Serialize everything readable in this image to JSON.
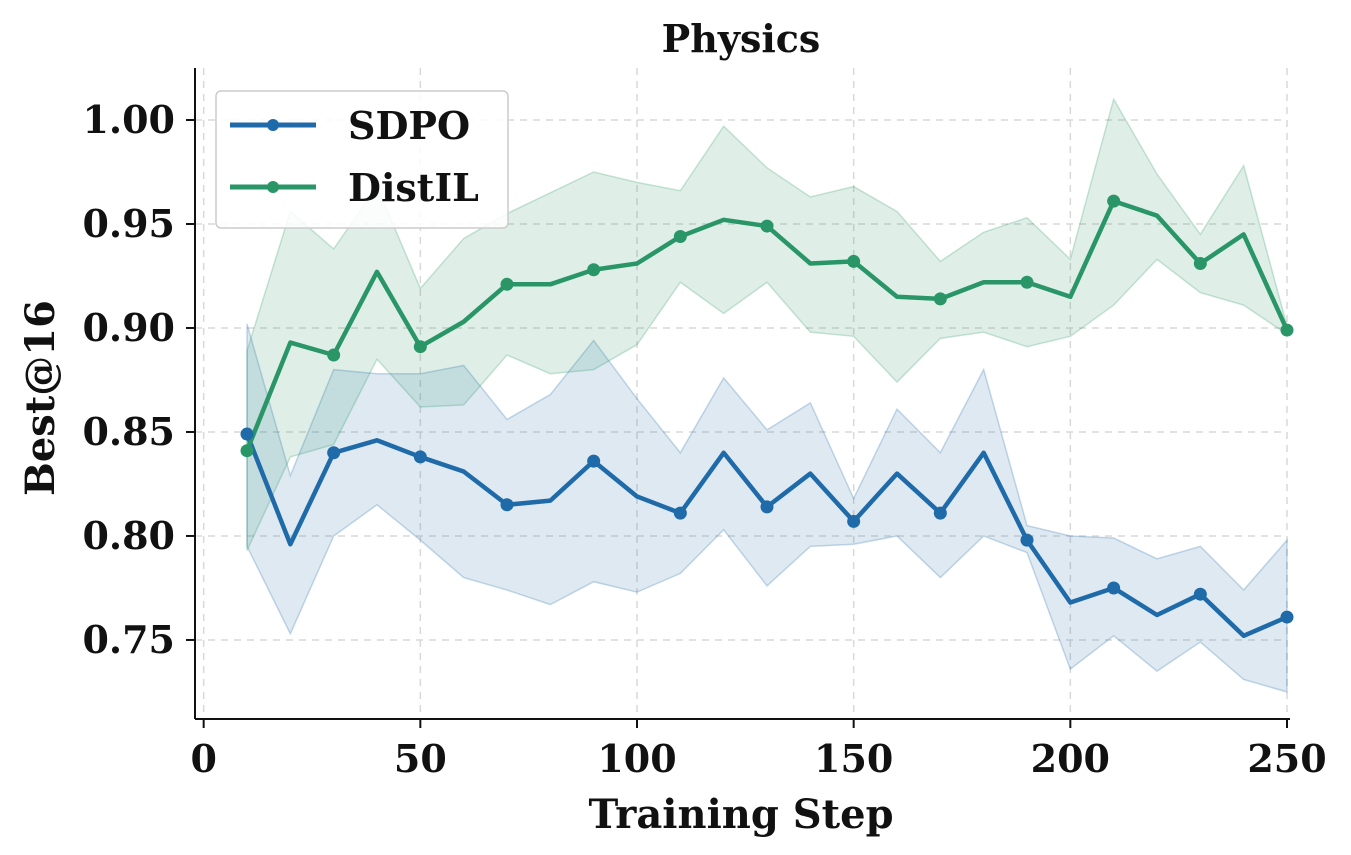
{
  "chart_data": {
    "type": "line",
    "title": "Physics",
    "xlabel": "Training Step",
    "ylabel": "Best@16",
    "xlim": [
      -2,
      250
    ],
    "ylim": [
      0.712,
      1.025
    ],
    "xticks": [
      0,
      50,
      100,
      150,
      200,
      250
    ],
    "xtick_labels": [
      "0",
      "50",
      "100",
      "150",
      "200",
      "250"
    ],
    "yticks": [
      0.75,
      0.8,
      0.85,
      0.9,
      0.95,
      1.0
    ],
    "ytick_labels": [
      "0.75",
      "0.80",
      "0.85",
      "0.90",
      "0.95",
      "1.00"
    ],
    "grid": true,
    "legend_position": "top-left",
    "x": [
      10,
      20,
      30,
      40,
      50,
      60,
      70,
      80,
      90,
      100,
      110,
      120,
      130,
      140,
      150,
      160,
      170,
      180,
      190,
      200,
      210,
      220,
      230,
      240,
      250
    ],
    "marker_x": [
      10,
      30,
      50,
      70,
      90,
      110,
      130,
      150,
      170,
      190,
      210,
      230,
      250
    ],
    "series": [
      {
        "name": "SDPO",
        "color": "#1f6aa8",
        "values": [
          0.849,
          0.796,
          0.84,
          0.846,
          0.838,
          0.831,
          0.815,
          0.817,
          0.836,
          0.819,
          0.811,
          0.84,
          0.814,
          0.83,
          0.807,
          0.83,
          0.811,
          0.84,
          0.798,
          0.768,
          0.775,
          0.762,
          0.772,
          0.752,
          0.761
        ],
        "upper": [
          0.902,
          0.829,
          0.88,
          0.878,
          0.878,
          0.882,
          0.856,
          0.868,
          0.894,
          0.866,
          0.84,
          0.876,
          0.851,
          0.864,
          0.818,
          0.861,
          0.84,
          0.88,
          0.805,
          0.8,
          0.799,
          0.789,
          0.795,
          0.774,
          0.798
        ],
        "lower": [
          0.795,
          0.753,
          0.8,
          0.815,
          0.798,
          0.78,
          0.774,
          0.767,
          0.778,
          0.773,
          0.782,
          0.803,
          0.776,
          0.795,
          0.796,
          0.8,
          0.78,
          0.8,
          0.792,
          0.736,
          0.752,
          0.735,
          0.749,
          0.731,
          0.725
        ]
      },
      {
        "name": "DistIL",
        "color": "#2a9668",
        "values": [
          0.841,
          0.893,
          0.887,
          0.927,
          0.891,
          0.903,
          0.921,
          0.921,
          0.928,
          0.931,
          0.944,
          0.952,
          0.949,
          0.931,
          0.932,
          0.915,
          0.914,
          0.922,
          0.922,
          0.915,
          0.961,
          0.954,
          0.931,
          0.945,
          0.899
        ],
        "upper": [
          0.889,
          0.956,
          0.938,
          0.968,
          0.919,
          0.943,
          0.955,
          0.965,
          0.975,
          0.97,
          0.966,
          0.997,
          0.977,
          0.963,
          0.968,
          0.956,
          0.932,
          0.946,
          0.953,
          0.933,
          1.01,
          0.974,
          0.945,
          0.978,
          0.901
        ],
        "lower": [
          0.793,
          0.838,
          0.844,
          0.885,
          0.862,
          0.863,
          0.887,
          0.878,
          0.88,
          0.892,
          0.922,
          0.907,
          0.922,
          0.898,
          0.896,
          0.874,
          0.895,
          0.898,
          0.891,
          0.896,
          0.911,
          0.933,
          0.917,
          0.911,
          0.897
        ]
      }
    ]
  }
}
